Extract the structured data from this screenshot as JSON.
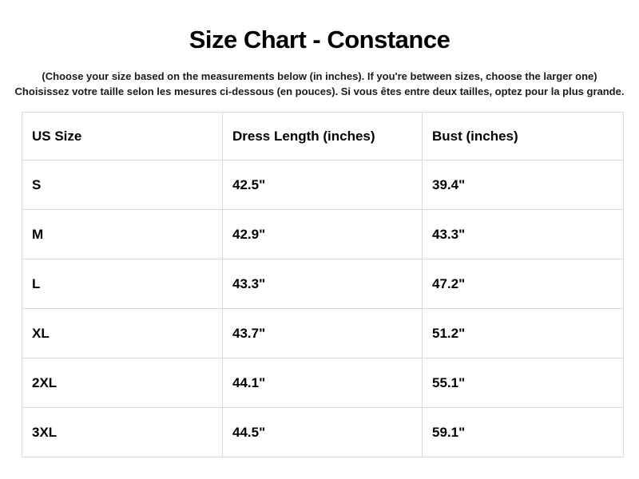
{
  "header": {
    "title": "Size Chart - Constance",
    "subtitle_en": "(Choose your size based on the measurements below (in inches). If you're between sizes, choose the larger one)",
    "subtitle_fr": "Choisissez votre taille selon les mesures ci-dessous (en pouces). Si vous êtes entre deux tailles, optez pour la plus grande."
  },
  "table": {
    "border_color": "#d9d9d9",
    "columns": [
      "US Size",
      "Dress Length (inches)",
      "Bust (inches)"
    ],
    "rows": [
      {
        "size": "S",
        "dress_length": "42.5\"",
        "bust": "39.4\""
      },
      {
        "size": "M",
        "dress_length": "42.9\"",
        "bust": "43.3\""
      },
      {
        "size": "L",
        "dress_length": "43.3\"",
        "bust": "47.2\""
      },
      {
        "size": "XL",
        "dress_length": "43.7\"",
        "bust": "51.2\""
      },
      {
        "size": "2XL",
        "dress_length": "44.1\"",
        "bust": "55.1\""
      },
      {
        "size": "3XL",
        "dress_length": "44.5\"",
        "bust": "59.1\""
      }
    ]
  }
}
